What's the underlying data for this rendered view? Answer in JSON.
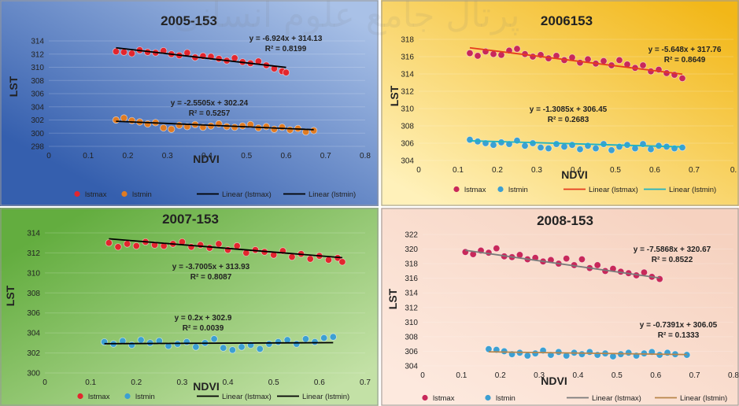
{
  "watermark": "پرتال جامع علوم انسانی",
  "chart_data": [
    {
      "id": "p2005",
      "type": "scatter",
      "title": "2005-153",
      "xlabel": "NDVI",
      "ylabel": "LST",
      "xlim": [
        0,
        0.8
      ],
      "xticks": [
        0,
        0.1,
        0.2,
        0.3,
        0.4,
        0.5,
        0.6,
        0.7,
        0.8
      ],
      "xtick_labels": [
        "0",
        "0.1",
        "0.2",
        "0.3",
        "0.4",
        "0.5",
        "0.6",
        "0.7",
        "0.8"
      ],
      "ylim": [
        298,
        314
      ],
      "yticks": [
        298,
        300,
        302,
        304,
        306,
        308,
        310,
        312,
        314
      ],
      "background": [
        "#355fae",
        "#a9c1e7"
      ],
      "trend_colors": [
        "#000000",
        "#000000"
      ],
      "legend": [
        "lstmax",
        "lstmin",
        "Linear (lstmax)",
        "Linear (lstmin)"
      ],
      "series": [
        {
          "name": "lstmax",
          "color": "#e2262e",
          "fit_x": [
            0.17,
            0.6
          ],
          "fit": [
            -6.924,
            314.13
          ],
          "x": [
            0.17,
            0.19,
            0.21,
            0.23,
            0.25,
            0.27,
            0.29,
            0.31,
            0.33,
            0.35,
            0.37,
            0.39,
            0.41,
            0.43,
            0.45,
            0.47,
            0.49,
            0.51,
            0.53,
            0.55,
            0.57,
            0.59,
            0.6
          ],
          "y": [
            312.4,
            312.3,
            312.1,
            312.6,
            312.3,
            312.2,
            312.5,
            312.0,
            311.8,
            312.2,
            311.5,
            311.7,
            311.6,
            311.3,
            311.0,
            311.4,
            310.8,
            310.6,
            310.9,
            310.3,
            309.8,
            309.4,
            309.2
          ]
        },
        {
          "name": "lstmin",
          "color": "#e07b22",
          "fit_x": [
            0.17,
            0.67
          ],
          "fit": [
            -2.5505,
            302.24
          ],
          "x": [
            0.17,
            0.19,
            0.21,
            0.23,
            0.25,
            0.27,
            0.29,
            0.31,
            0.33,
            0.35,
            0.37,
            0.39,
            0.41,
            0.43,
            0.45,
            0.47,
            0.49,
            0.51,
            0.53,
            0.55,
            0.57,
            0.59,
            0.61,
            0.63,
            0.65,
            0.67
          ],
          "y": [
            302.0,
            302.3,
            301.9,
            301.7,
            301.4,
            301.6,
            300.8,
            300.6,
            301.2,
            301.0,
            301.3,
            300.9,
            301.1,
            301.4,
            301.0,
            300.9,
            301.1,
            301.3,
            300.8,
            301.0,
            300.6,
            300.9,
            300.5,
            300.7,
            300.2,
            300.4
          ]
        }
      ],
      "annotations": [
        {
          "eq": "y = -6.924x + 314.13",
          "r2": "R² = 0.8199"
        },
        {
          "eq": "y = -2.5505x + 302.24",
          "r2": "R² = 0.5257"
        }
      ]
    },
    {
      "id": "p2006",
      "type": "scatter",
      "title": "2006153",
      "xlabel": "NDVI",
      "ylabel": "LST",
      "xlim": [
        0,
        0.8
      ],
      "xticks": [
        0,
        0.1,
        0.2,
        0.3,
        0.4,
        0.5,
        0.6,
        0.7,
        0.8
      ],
      "xtick_labels": [
        "0",
        "0.1",
        "0.2",
        "0.3",
        "0.4",
        "0.5",
        "0.6",
        "0.7",
        "0."
      ],
      "ylim": [
        304,
        318
      ],
      "yticks": [
        304,
        306,
        308,
        310,
        312,
        314,
        316,
        318
      ],
      "background": [
        "#f2b718",
        "#fff1ba"
      ],
      "trend_colors": [
        "#e53b1e",
        "#1fb2c2"
      ],
      "legend": [
        "lstmax",
        "lstmin",
        "Linear (lstmax)",
        "Linear (lstmin)"
      ],
      "series": [
        {
          "name": "lstmax",
          "color": "#c8285a",
          "fit_x": [
            0.13,
            0.67
          ],
          "fit": [
            -5.648,
            317.76
          ],
          "x": [
            0.13,
            0.15,
            0.17,
            0.19,
            0.21,
            0.23,
            0.25,
            0.27,
            0.29,
            0.31,
            0.33,
            0.35,
            0.37,
            0.39,
            0.41,
            0.43,
            0.45,
            0.47,
            0.49,
            0.51,
            0.53,
            0.55,
            0.57,
            0.59,
            0.61,
            0.63,
            0.65,
            0.67
          ],
          "y": [
            316.4,
            316.1,
            316.6,
            316.3,
            316.2,
            316.7,
            316.9,
            316.3,
            316.0,
            316.2,
            315.8,
            316.1,
            315.6,
            315.9,
            315.3,
            315.7,
            315.2,
            315.5,
            315.0,
            315.6,
            315.1,
            314.7,
            315.0,
            314.3,
            314.5,
            314.1,
            313.9,
            313.5
          ]
        },
        {
          "name": "lstmin",
          "color": "#3c9fd2",
          "fit_x": [
            0.13,
            0.67
          ],
          "fit": [
            -1.3085,
            306.45
          ],
          "x": [
            0.13,
            0.15,
            0.17,
            0.19,
            0.21,
            0.23,
            0.25,
            0.27,
            0.29,
            0.31,
            0.33,
            0.35,
            0.37,
            0.39,
            0.41,
            0.43,
            0.45,
            0.47,
            0.49,
            0.51,
            0.53,
            0.55,
            0.57,
            0.59,
            0.61,
            0.63,
            0.65,
            0.67
          ],
          "y": [
            306.4,
            306.2,
            306.0,
            305.8,
            306.1,
            305.9,
            306.3,
            305.7,
            306.0,
            305.5,
            305.4,
            305.9,
            305.6,
            305.8,
            305.3,
            305.7,
            305.4,
            305.9,
            305.2,
            305.6,
            305.8,
            305.4,
            305.9,
            305.3,
            305.7,
            305.6,
            305.4,
            305.5
          ]
        }
      ],
      "annotations": [
        {
          "eq": "y = -5.648x + 317.76",
          "r2": "R² = 0.8649"
        },
        {
          "eq": "y = -1.3085x + 306.45",
          "r2": "R² = 0.2683"
        }
      ]
    },
    {
      "id": "p2007",
      "type": "scatter",
      "title": "2007-153",
      "xlabel": "NDVI",
      "ylabel": "LST",
      "xlim": [
        0,
        0.7
      ],
      "xticks": [
        0,
        0.1,
        0.2,
        0.3,
        0.4,
        0.5,
        0.6,
        0.7
      ],
      "xtick_labels": [
        "0",
        "0.1",
        "0.2",
        "0.3",
        "0.4",
        "0.5",
        "0.6",
        "0.7"
      ],
      "ylim": [
        300,
        314
      ],
      "yticks": [
        300,
        302,
        304,
        306,
        308,
        310,
        312,
        314
      ],
      "background": [
        "#63ad3f",
        "#c3e1a6"
      ],
      "trend_colors": [
        "#000000",
        "#000000"
      ],
      "legend": [
        "lstmax",
        "lstmin",
        "Linear (lstmax)",
        "Linear (lstmin)"
      ],
      "series": [
        {
          "name": "lstmax",
          "color": "#e2262e",
          "fit_x": [
            0.14,
            0.65
          ],
          "fit": [
            -3.7005,
            313.93
          ],
          "x": [
            0.14,
            0.16,
            0.18,
            0.2,
            0.22,
            0.24,
            0.26,
            0.28,
            0.3,
            0.32,
            0.34,
            0.36,
            0.38,
            0.4,
            0.42,
            0.44,
            0.46,
            0.48,
            0.5,
            0.52,
            0.54,
            0.56,
            0.58,
            0.6,
            0.62,
            0.64,
            0.65
          ],
          "y": [
            313.0,
            312.6,
            312.9,
            312.7,
            313.1,
            312.8,
            312.7,
            312.9,
            313.1,
            312.6,
            312.8,
            312.5,
            312.9,
            312.3,
            312.7,
            312.0,
            312.3,
            312.1,
            311.8,
            312.2,
            311.6,
            311.9,
            311.4,
            311.7,
            311.3,
            311.5,
            311.1
          ]
        },
        {
          "name": "lstmin",
          "color": "#3c9fd2",
          "fit_x": [
            0.13,
            0.63
          ],
          "fit": [
            0.2,
            302.9
          ],
          "x": [
            0.13,
            0.15,
            0.17,
            0.19,
            0.21,
            0.23,
            0.25,
            0.27,
            0.29,
            0.31,
            0.33,
            0.35,
            0.37,
            0.39,
            0.41,
            0.43,
            0.45,
            0.47,
            0.49,
            0.51,
            0.53,
            0.55,
            0.57,
            0.59,
            0.61,
            0.63
          ],
          "y": [
            303.1,
            302.9,
            303.2,
            302.8,
            303.3,
            303.0,
            303.2,
            302.7,
            302.9,
            303.1,
            302.6,
            303.0,
            303.4,
            302.5,
            302.3,
            302.6,
            302.8,
            302.4,
            302.9,
            303.1,
            303.3,
            302.9,
            303.4,
            303.1,
            303.5,
            303.6
          ]
        }
      ],
      "annotations": [
        {
          "eq": "y = -3.7005x + 313.93",
          "r2": "R² = 0.8087"
        },
        {
          "eq": "y = 0.2x + 302.9",
          "r2": "R² = 0.0039"
        }
      ]
    },
    {
      "id": "p2008",
      "type": "scatter",
      "title": "2008-153",
      "xlabel": "NDVI",
      "ylabel": "LST",
      "xlim": [
        0,
        0.8
      ],
      "xticks": [
        0,
        0.1,
        0.2,
        0.3,
        0.4,
        0.5,
        0.6,
        0.7,
        0.8
      ],
      "xtick_labels": [
        "0",
        "0.1",
        "0.2",
        "0.3",
        "0.4",
        "0.5",
        "0.6",
        "0.7",
        "0.8"
      ],
      "ylim": [
        304,
        322
      ],
      "yticks": [
        304,
        306,
        308,
        310,
        312,
        314,
        316,
        318,
        320,
        322
      ],
      "background": [
        "#f6d2c0",
        "#fde9de"
      ],
      "trend_colors": [
        "#7a7a7a",
        "#b8864a"
      ],
      "legend": [
        "lstmax",
        "lstmin",
        "Linear (lstmax)",
        "Linear (lstmin)"
      ],
      "series": [
        {
          "name": "lstmax",
          "color": "#c8285a",
          "fit_x": [
            0.11,
            0.61
          ],
          "fit": [
            -7.5868,
            320.67
          ],
          "x": [
            0.11,
            0.13,
            0.15,
            0.17,
            0.19,
            0.21,
            0.23,
            0.25,
            0.27,
            0.29,
            0.31,
            0.33,
            0.35,
            0.37,
            0.39,
            0.41,
            0.43,
            0.45,
            0.47,
            0.49,
            0.51,
            0.53,
            0.55,
            0.57,
            0.59,
            0.61
          ],
          "y": [
            319.6,
            319.3,
            319.8,
            319.5,
            320.1,
            319.0,
            318.9,
            319.2,
            318.6,
            318.8,
            318.3,
            318.5,
            318.0,
            318.7,
            317.8,
            318.6,
            317.4,
            317.8,
            317.0,
            317.3,
            316.9,
            316.7,
            316.4,
            316.8,
            316.2,
            315.9
          ]
        },
        {
          "name": "lstmin",
          "color": "#3c9fd2",
          "fit_x": [
            0.17,
            0.68
          ],
          "fit": [
            -0.7391,
            306.05
          ],
          "x": [
            0.17,
            0.19,
            0.21,
            0.23,
            0.25,
            0.27,
            0.29,
            0.31,
            0.33,
            0.35,
            0.37,
            0.39,
            0.41,
            0.43,
            0.45,
            0.47,
            0.49,
            0.51,
            0.53,
            0.55,
            0.57,
            0.59,
            0.61,
            0.63,
            0.65,
            0.68
          ],
          "y": [
            306.3,
            306.2,
            306.0,
            305.6,
            305.8,
            305.4,
            305.7,
            306.1,
            305.5,
            305.9,
            305.4,
            305.8,
            305.6,
            305.9,
            305.5,
            305.7,
            305.3,
            305.6,
            305.8,
            305.4,
            305.7,
            305.9,
            305.5,
            305.8,
            305.6,
            305.5
          ]
        }
      ],
      "annotations": [
        {
          "eq": "y = -7.5868x + 320.67",
          "r2": "R² = 0.8522"
        },
        {
          "eq": "y = -0.7391x + 306.05",
          "r2": "R² = 0.1333"
        }
      ]
    }
  ]
}
